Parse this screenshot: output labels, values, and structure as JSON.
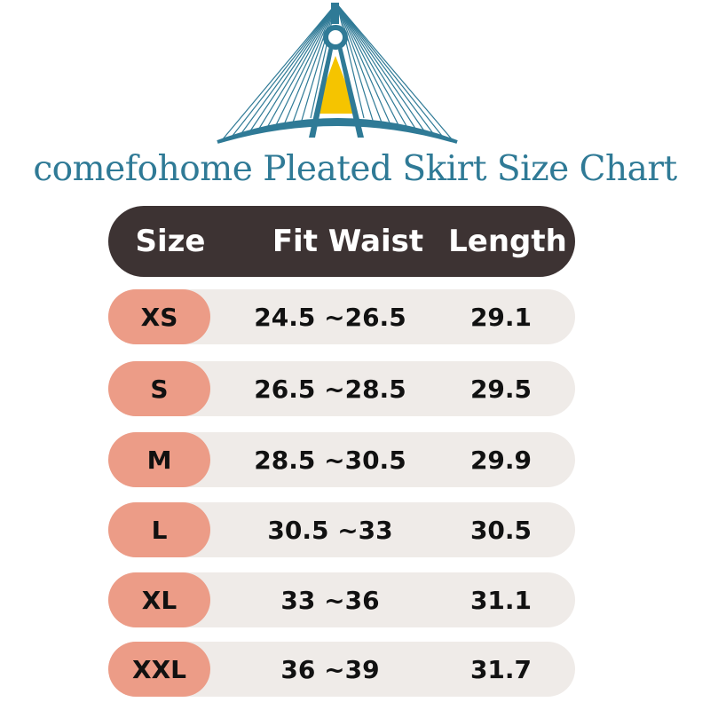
{
  "title": "comefohome Pleated Skirt Size Chart",
  "colors": {
    "brand": "#2f7a96",
    "accent_yellow": "#f5c400",
    "header_bg": "#3d3333",
    "size_pill": "#ec9c87",
    "row_bg": "#efebe8"
  },
  "table": {
    "headers": [
      "Size",
      "Fit Waist",
      "Length"
    ],
    "rows": [
      {
        "size": "XS",
        "waist": "24.5 ~26.5",
        "length": "29.1"
      },
      {
        "size": "S",
        "waist": "26.5 ~28.5",
        "length": "29.5"
      },
      {
        "size": "M",
        "waist": "28.5 ~30.5",
        "length": "29.9"
      },
      {
        "size": "L",
        "waist": "30.5 ~33",
        "length": "30.5"
      },
      {
        "size": "XL",
        "waist": "33 ~36",
        "length": "31.1"
      },
      {
        "size": "XXL",
        "waist": "36 ~39",
        "length": "31.7"
      }
    ]
  }
}
